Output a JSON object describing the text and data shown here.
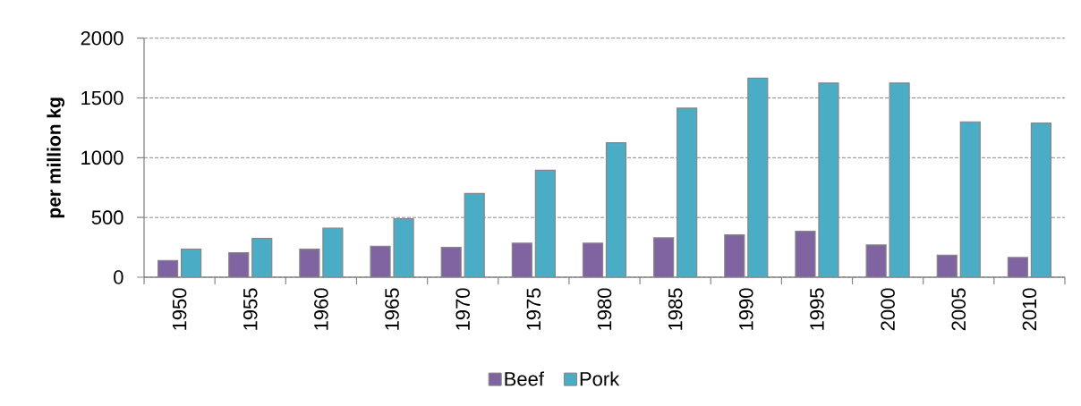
{
  "chart_data": {
    "type": "bar",
    "ylabel": "per million kg",
    "categories": [
      "1950",
      "1955",
      "1960",
      "1965",
      "1970",
      "1975",
      "1980",
      "1985",
      "1990",
      "1995",
      "2000",
      "2005",
      "2010"
    ],
    "series": [
      {
        "name": "Beef",
        "color": "#8064a2",
        "values": [
          140,
          205,
          235,
          260,
          250,
          285,
          285,
          330,
          355,
          385,
          270,
          185,
          165
        ]
      },
      {
        "name": "Pork",
        "color": "#4bacc6",
        "values": [
          235,
          325,
          410,
          490,
          700,
          895,
          1125,
          1415,
          1665,
          1625,
          1625,
          1300,
          1290
        ]
      }
    ],
    "ylim": [
      0,
      2000
    ],
    "yticks": [
      0,
      500,
      1000,
      1500,
      2000
    ],
    "grid": "y",
    "legend": "bottom"
  }
}
